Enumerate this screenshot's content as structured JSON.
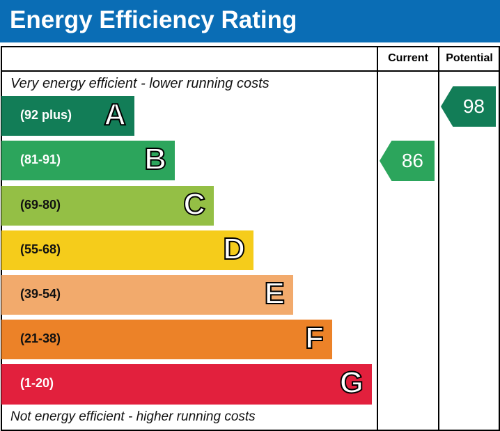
{
  "header": {
    "title": "Energy Efficiency Rating"
  },
  "columns": {
    "current": "Current",
    "potential": "Potential"
  },
  "notes": {
    "top": "Very energy efficient - lower running costs",
    "bottom": "Not energy efficient - higher running costs"
  },
  "chart_data": {
    "type": "bar",
    "title": "Energy Efficiency Rating",
    "bands": [
      {
        "letter": "A",
        "range": "(92 plus)",
        "color": "#127d57"
      },
      {
        "letter": "B",
        "range": "(81-91)",
        "color": "#2ca55c"
      },
      {
        "letter": "C",
        "range": "(69-80)",
        "color": "#94bf45"
      },
      {
        "letter": "D",
        "range": "(55-68)",
        "color": "#f5cc1b"
      },
      {
        "letter": "E",
        "range": "(39-54)",
        "color": "#f2aa6c"
      },
      {
        "letter": "F",
        "range": "(21-38)",
        "color": "#ec8228"
      },
      {
        "letter": "G",
        "range": "(1-20)",
        "color": "#e2203d"
      }
    ],
    "current": {
      "value": 86,
      "band": "B"
    },
    "potential": {
      "value": 98,
      "band": "A"
    }
  }
}
